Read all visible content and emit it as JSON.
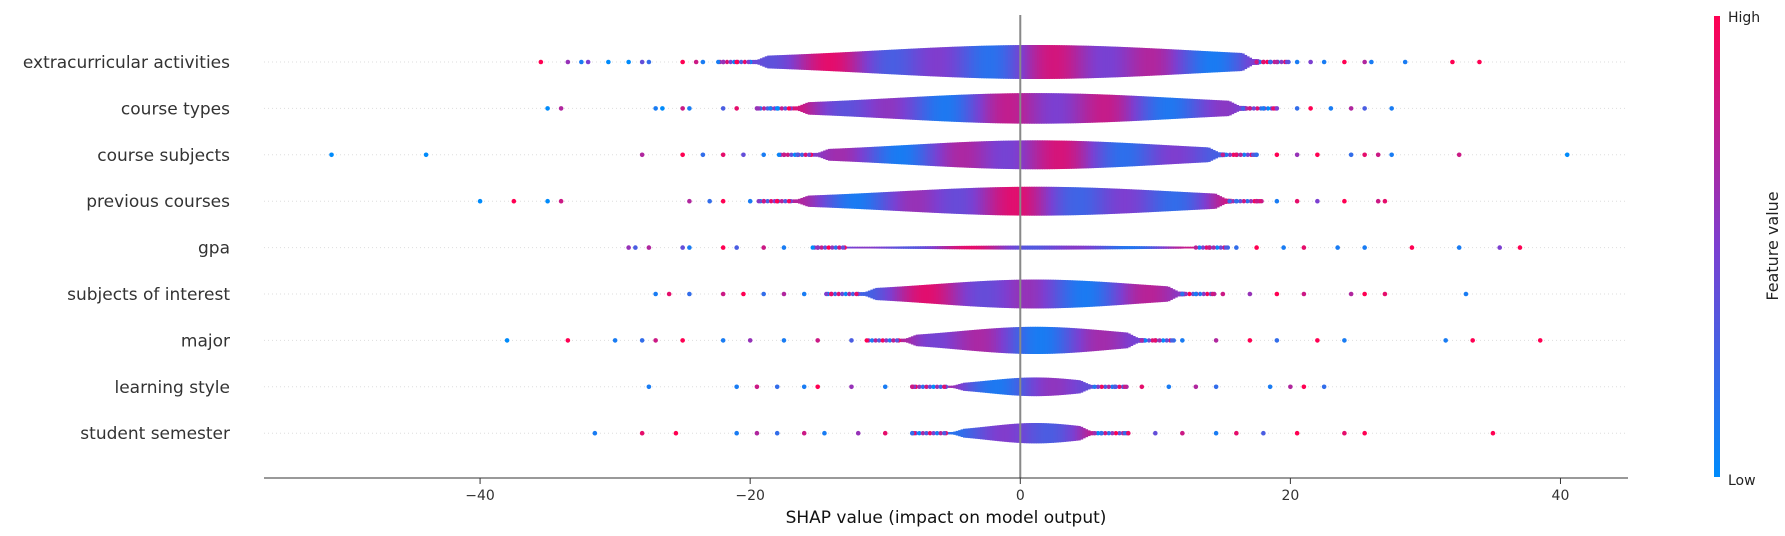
{
  "chart_data": {
    "type": "scatter",
    "subtype": "shap-violin-summary",
    "xlabel": "SHAP value (impact on model output)",
    "xlim": [
      -56,
      45
    ],
    "xticks": [
      -40,
      -20,
      0,
      20,
      40
    ],
    "xtick_labels": [
      "−40",
      "−20",
      "0",
      "20",
      "40"
    ],
    "colorbar": {
      "title": "Feature value",
      "high_label": "High",
      "low_label": "Low",
      "low_color": "#008bfb",
      "high_color": "#ff0052"
    },
    "zero_line": true,
    "features": [
      {
        "name": "extracurricular activities",
        "spread_min": -20,
        "spread_max": 17.5,
        "width": 1.0,
        "outliers": [
          {
            "x": -35.5,
            "c": 1
          },
          {
            "x": -33.5,
            "c": 0.6
          },
          {
            "x": -32.5,
            "c": 0.1
          },
          {
            "x": -32,
            "c": 0.5
          },
          {
            "x": -30.5,
            "c": 0
          },
          {
            "x": -29,
            "c": 0
          },
          {
            "x": -28,
            "c": 0.4
          },
          {
            "x": -27.5,
            "c": 0.2
          },
          {
            "x": -25,
            "c": 1
          },
          {
            "x": -24,
            "c": 0.8
          },
          {
            "x": -23.5,
            "c": 0.1
          },
          {
            "x": -22,
            "c": 0.6
          },
          {
            "x": -21,
            "c": 1
          },
          {
            "x": 18,
            "c": 0.9
          },
          {
            "x": 18.5,
            "c": 0.2
          },
          {
            "x": 19,
            "c": 0.7
          },
          {
            "x": 20.5,
            "c": 0.1
          },
          {
            "x": 21.5,
            "c": 0.5
          },
          {
            "x": 22.5,
            "c": 0.1
          },
          {
            "x": 24,
            "c": 1
          },
          {
            "x": 25.5,
            "c": 0.7
          },
          {
            "x": 26,
            "c": 0.1
          },
          {
            "x": 28.5,
            "c": 0.1
          },
          {
            "x": 32,
            "c": 1
          },
          {
            "x": 34,
            "c": 1
          }
        ]
      },
      {
        "name": "course types",
        "spread_min": -17,
        "spread_max": 16.5,
        "width": 0.9,
        "outliers": [
          {
            "x": -35,
            "c": 0
          },
          {
            "x": -34,
            "c": 0.7
          },
          {
            "x": -27,
            "c": 0.1
          },
          {
            "x": -26.5,
            "c": 0
          },
          {
            "x": -25,
            "c": 0.8
          },
          {
            "x": -24.5,
            "c": 0.1
          },
          {
            "x": -22,
            "c": 0.3
          },
          {
            "x": -21,
            "c": 0.9
          },
          {
            "x": -19.5,
            "c": 0.6
          },
          {
            "x": -18.5,
            "c": 0.1
          },
          {
            "x": -18,
            "c": 0
          },
          {
            "x": 17,
            "c": 0.8
          },
          {
            "x": 18,
            "c": 0.1
          },
          {
            "x": 19,
            "c": 0.5
          },
          {
            "x": 20.5,
            "c": 0.2
          },
          {
            "x": 21.5,
            "c": 1
          },
          {
            "x": 23,
            "c": 0.1
          },
          {
            "x": 24.5,
            "c": 0.7
          },
          {
            "x": 25.5,
            "c": 0.3
          },
          {
            "x": 27.5,
            "c": 0.1
          }
        ]
      },
      {
        "name": "course subjects",
        "spread_min": -15.5,
        "spread_max": 15,
        "width": 0.85,
        "outliers": [
          {
            "x": -51,
            "c": 0
          },
          {
            "x": -44,
            "c": 0
          },
          {
            "x": -28,
            "c": 0.7
          },
          {
            "x": -25,
            "c": 1
          },
          {
            "x": -23.5,
            "c": 0.2
          },
          {
            "x": -22,
            "c": 0.9
          },
          {
            "x": -20.5,
            "c": 0.4
          },
          {
            "x": -19,
            "c": 0.1
          },
          {
            "x": -17.5,
            "c": 0.8
          },
          {
            "x": -16.5,
            "c": 0.3
          },
          {
            "x": 16,
            "c": 0.9
          },
          {
            "x": 17.5,
            "c": 0.2
          },
          {
            "x": 19,
            "c": 1
          },
          {
            "x": 20.5,
            "c": 0.6
          },
          {
            "x": 22,
            "c": 1
          },
          {
            "x": 24.5,
            "c": 0.2
          },
          {
            "x": 25.5,
            "c": 0.9
          },
          {
            "x": 26.5,
            "c": 0.8
          },
          {
            "x": 27.5,
            "c": 0.1
          },
          {
            "x": 32.5,
            "c": 0.8
          },
          {
            "x": 40.5,
            "c": 0
          }
        ]
      },
      {
        "name": "previous courses",
        "spread_min": -17,
        "spread_max": 15.5,
        "width": 0.85,
        "outliers": [
          {
            "x": -40,
            "c": 0
          },
          {
            "x": -37.5,
            "c": 1
          },
          {
            "x": -35,
            "c": 0
          },
          {
            "x": -34,
            "c": 0.8
          },
          {
            "x": -24.5,
            "c": 0.7
          },
          {
            "x": -23,
            "c": 0.2
          },
          {
            "x": -22,
            "c": 1
          },
          {
            "x": -20,
            "c": 0.1
          },
          {
            "x": -19,
            "c": 0.8
          },
          {
            "x": -18,
            "c": 1
          },
          {
            "x": 16,
            "c": 0.2
          },
          {
            "x": 17.5,
            "c": 0.8
          },
          {
            "x": 19,
            "c": 0.1
          },
          {
            "x": 20.5,
            "c": 0.9
          },
          {
            "x": 22,
            "c": 0.5
          },
          {
            "x": 24,
            "c": 1
          },
          {
            "x": 26.5,
            "c": 0.8
          },
          {
            "x": 27,
            "c": 0.9
          }
        ]
      },
      {
        "name": "gpa",
        "spread_min": -13,
        "spread_max": 13,
        "width": 0.12,
        "outliers": [
          {
            "x": -29,
            "c": 0.6
          },
          {
            "x": -28.5,
            "c": 0.3
          },
          {
            "x": -27.5,
            "c": 0.7
          },
          {
            "x": -25,
            "c": 0.4
          },
          {
            "x": -24.5,
            "c": 0.1
          },
          {
            "x": -22,
            "c": 1
          },
          {
            "x": -21,
            "c": 0.3
          },
          {
            "x": -19,
            "c": 0.8
          },
          {
            "x": -17.5,
            "c": 0.1
          },
          {
            "x": -15,
            "c": 0.6
          },
          {
            "x": 14,
            "c": 0.8
          },
          {
            "x": 16,
            "c": 0.2
          },
          {
            "x": 17.5,
            "c": 1
          },
          {
            "x": 19.5,
            "c": 0.1
          },
          {
            "x": 21,
            "c": 0.9
          },
          {
            "x": 23.5,
            "c": 0.1
          },
          {
            "x": 25.5,
            "c": 0.1
          },
          {
            "x": 29,
            "c": 1
          },
          {
            "x": 32.5,
            "c": 0.1
          },
          {
            "x": 35.5,
            "c": 0.5
          },
          {
            "x": 37,
            "c": 1
          }
        ]
      },
      {
        "name": "subjects of interest",
        "spread_min": -12,
        "spread_max": 12,
        "width": 0.85,
        "outliers": [
          {
            "x": -27,
            "c": 0.1
          },
          {
            "x": -26,
            "c": 0.9
          },
          {
            "x": -24.5,
            "c": 0.2
          },
          {
            "x": -22,
            "c": 0.8
          },
          {
            "x": -20.5,
            "c": 1
          },
          {
            "x": -19,
            "c": 0.2
          },
          {
            "x": -17.5,
            "c": 0.7
          },
          {
            "x": -16,
            "c": 0.1
          },
          {
            "x": -14,
            "c": 0.9
          },
          {
            "x": 13,
            "c": 0.1
          },
          {
            "x": 15,
            "c": 0.8
          },
          {
            "x": 17,
            "c": 0.6
          },
          {
            "x": 19,
            "c": 1
          },
          {
            "x": 21,
            "c": 0.8
          },
          {
            "x": 24.5,
            "c": 0.7
          },
          {
            "x": 25.5,
            "c": 1
          },
          {
            "x": 27,
            "c": 0.9
          },
          {
            "x": 33,
            "c": 0.1
          }
        ]
      },
      {
        "name": "major",
        "spread_min": -9,
        "spread_max": 9,
        "width": 0.8,
        "outliers": [
          {
            "x": -38,
            "c": 0
          },
          {
            "x": -33.5,
            "c": 1
          },
          {
            "x": -30,
            "c": 0.1
          },
          {
            "x": -28,
            "c": 0.2
          },
          {
            "x": -27,
            "c": 0.8
          },
          {
            "x": -25,
            "c": 1
          },
          {
            "x": -22,
            "c": 0.1
          },
          {
            "x": -20,
            "c": 0.6
          },
          {
            "x": -17.5,
            "c": 0.1
          },
          {
            "x": -15,
            "c": 0.8
          },
          {
            "x": -12.5,
            "c": 0.3
          },
          {
            "x": 10,
            "c": 0.9
          },
          {
            "x": 12,
            "c": 0.1
          },
          {
            "x": 14.5,
            "c": 0.7
          },
          {
            "x": 17,
            "c": 1
          },
          {
            "x": 19,
            "c": 0.2
          },
          {
            "x": 22,
            "c": 1
          },
          {
            "x": 24,
            "c": 0.1
          },
          {
            "x": 31.5,
            "c": 0.1
          },
          {
            "x": 33.5,
            "c": 1
          },
          {
            "x": 38.5,
            "c": 1
          }
        ]
      },
      {
        "name": "learning style",
        "spread_min": -5.5,
        "spread_max": 5.5,
        "width": 0.55,
        "outliers": [
          {
            "x": -27.5,
            "c": 0.1
          },
          {
            "x": -21,
            "c": 0.1
          },
          {
            "x": -19.5,
            "c": 0.8
          },
          {
            "x": -18,
            "c": 0.2
          },
          {
            "x": -16,
            "c": 0.1
          },
          {
            "x": -15,
            "c": 1
          },
          {
            "x": -12.5,
            "c": 0.6
          },
          {
            "x": -10,
            "c": 0.1
          },
          {
            "x": -8,
            "c": 0.8
          },
          {
            "x": 7,
            "c": 0.3
          },
          {
            "x": 9,
            "c": 0.9
          },
          {
            "x": 11,
            "c": 0.1
          },
          {
            "x": 13,
            "c": 0.7
          },
          {
            "x": 14.5,
            "c": 0.2
          },
          {
            "x": 18.5,
            "c": 0.1
          },
          {
            "x": 20,
            "c": 0.7
          },
          {
            "x": 21,
            "c": 1
          },
          {
            "x": 22.5,
            "c": 0.2
          }
        ]
      },
      {
        "name": "student semester",
        "spread_min": -5.5,
        "spread_max": 5.5,
        "width": 0.6,
        "outliers": [
          {
            "x": -31.5,
            "c": 0.1
          },
          {
            "x": -28,
            "c": 0.9
          },
          {
            "x": -25.5,
            "c": 1
          },
          {
            "x": -21,
            "c": 0.1
          },
          {
            "x": -19.5,
            "c": 0.7
          },
          {
            "x": -18,
            "c": 0.2
          },
          {
            "x": -16,
            "c": 0.8
          },
          {
            "x": -14.5,
            "c": 0.1
          },
          {
            "x": -12,
            "c": 0.6
          },
          {
            "x": -10,
            "c": 0.9
          },
          {
            "x": -8,
            "c": 0.2
          },
          {
            "x": 6,
            "c": 0.2
          },
          {
            "x": 8,
            "c": 0.9
          },
          {
            "x": 10,
            "c": 0.4
          },
          {
            "x": 12,
            "c": 0.8
          },
          {
            "x": 14.5,
            "c": 0.1
          },
          {
            "x": 16,
            "c": 0.9
          },
          {
            "x": 18,
            "c": 0.3
          },
          {
            "x": 20.5,
            "c": 1
          },
          {
            "x": 24,
            "c": 0.9
          },
          {
            "x": 25.5,
            "c": 1
          },
          {
            "x": 35,
            "c": 1
          }
        ]
      }
    ]
  }
}
